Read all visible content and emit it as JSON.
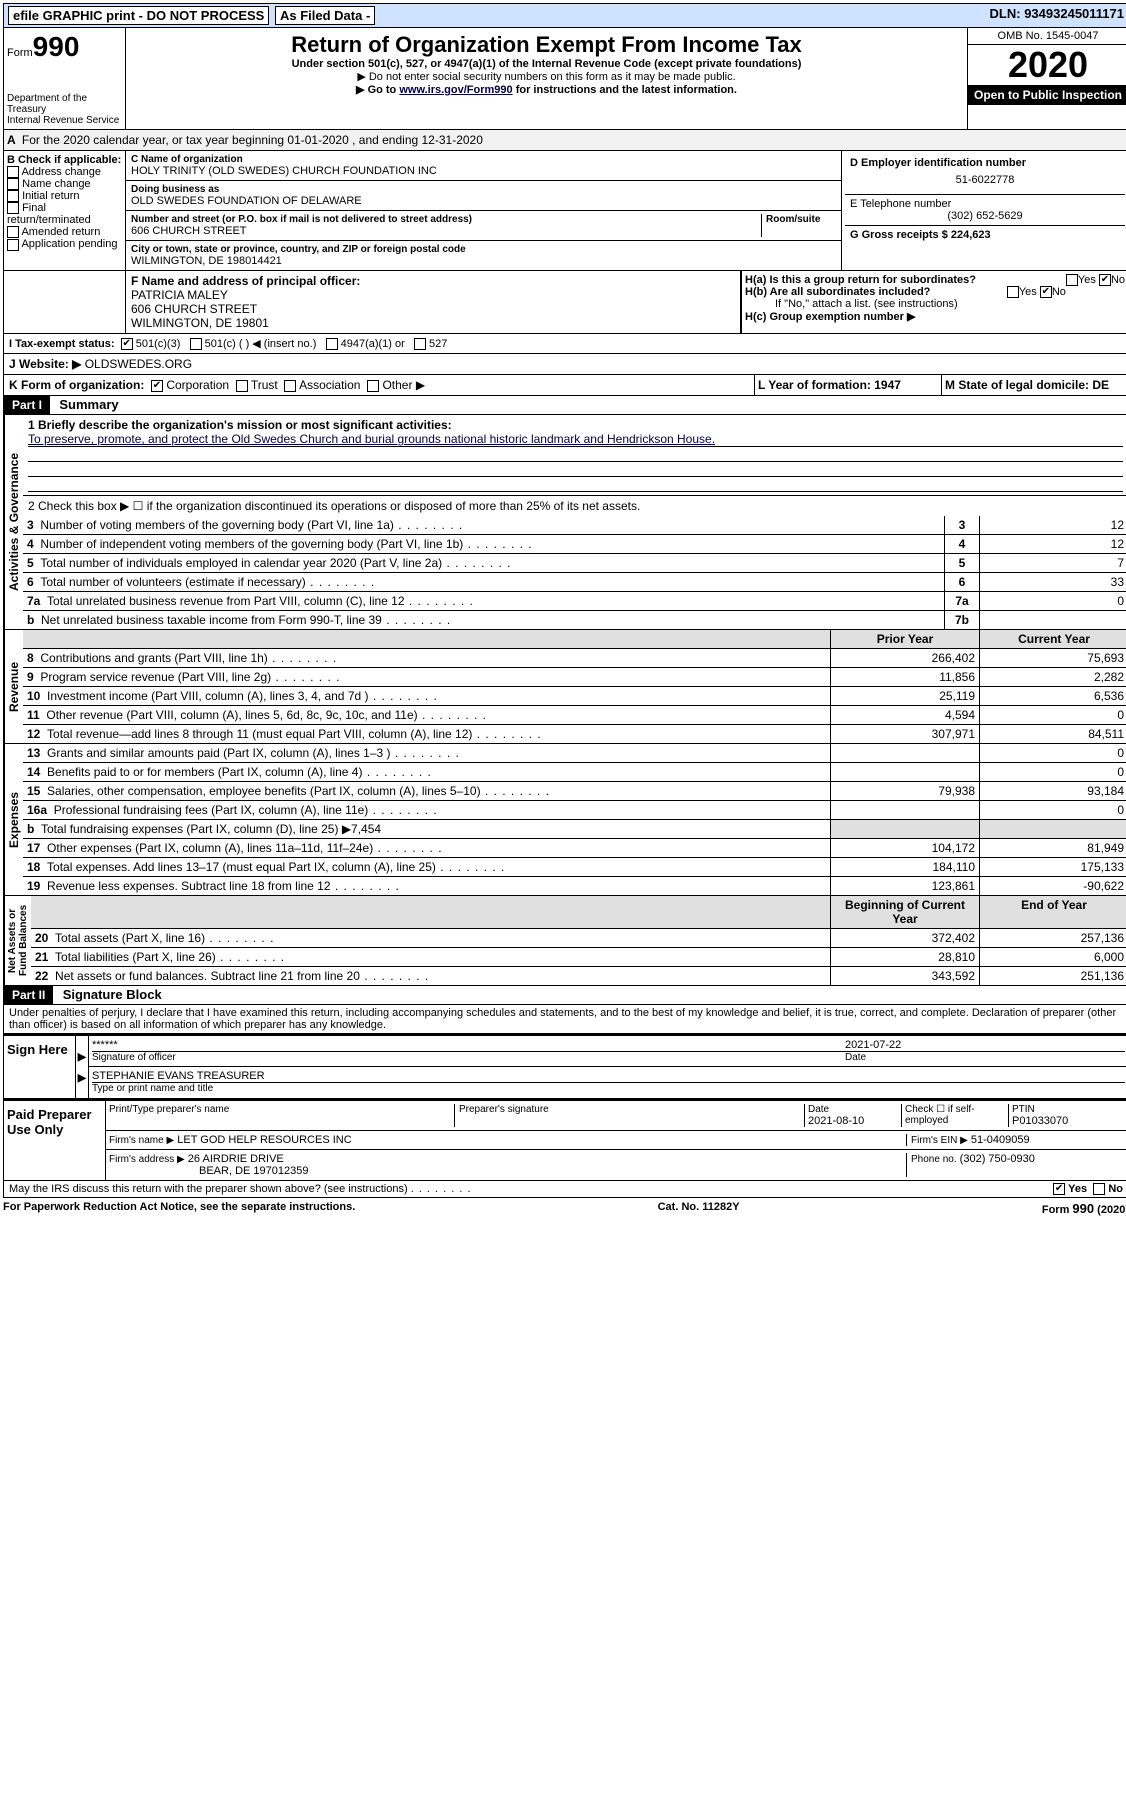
{
  "topbar": {
    "efile": "efile GRAPHIC print - DO NOT PROCESS",
    "asfiled": "As Filed Data -",
    "dln": "DLN: 93493245011171"
  },
  "header": {
    "form": "Form",
    "num": "990",
    "dept1": "Department of the Treasury",
    "dept2": "Internal Revenue Service",
    "title": "Return of Organization Exempt From Income Tax",
    "sub": "Under section 501(c), 527, or 4947(a)(1) of the Internal Revenue Code (except private foundations)",
    "note1": "▶ Do not enter social security numbers on this form as it may be made public.",
    "note2_pre": "▶ Go to ",
    "note2_link": "www.irs.gov/Form990",
    "note2_post": " for instructions and the latest information.",
    "omb": "OMB No. 1545-0047",
    "year": "2020",
    "open": "Open to Public Inspection"
  },
  "A": "For the 2020 calendar year, or tax year beginning 01-01-2020   , and ending 12-31-2020",
  "B": {
    "title": "B Check if applicable:",
    "opts": [
      "Address change",
      "Name change",
      "Initial return",
      "Final return/terminated",
      "Amended return",
      "Application pending"
    ]
  },
  "C": {
    "name_lbl": "C Name of organization",
    "name": "HOLY TRINITY (OLD SWEDES) CHURCH FOUNDATION INC",
    "dba_lbl": "Doing business as",
    "dba": "OLD SWEDES FOUNDATION OF DELAWARE",
    "addr_lbl": "Number and street (or P.O. box if mail is not delivered to street address)",
    "room_lbl": "Room/suite",
    "addr": "606 CHURCH STREET",
    "city_lbl": "City or town, state or province, country, and ZIP or foreign postal code",
    "city": "WILMINGTON, DE  198014421"
  },
  "D": {
    "lbl": "D Employer identification number",
    "val": "51-6022778"
  },
  "E": {
    "lbl": "E Telephone number",
    "val": "(302) 652-5629"
  },
  "G": "G Gross receipts $ 224,623",
  "F": {
    "lbl": "F  Name and address of principal officer:",
    "name": "PATRICIA MALEY",
    "addr1": "606 CHURCH STREET",
    "addr2": "WILMINGTON, DE  19801"
  },
  "H": {
    "a": "H(a)  Is this a group return for subordinates?",
    "b": "H(b)  Are all subordinates included?",
    "bnote": "If \"No,\" attach a list. (see instructions)",
    "c": "H(c)  Group exemption number ▶"
  },
  "I": {
    "lbl": "I   Tax-exempt status:",
    "o1": "501(c)(3)",
    "o2": "501(c) (  ) ◀ (insert no.)",
    "o3": "4947(a)(1) or",
    "o4": "527"
  },
  "J": {
    "lbl": "J   Website: ▶",
    "val": "OLDSWEDES.ORG"
  },
  "K": {
    "lbl": "K Form of organization:",
    "o1": "Corporation",
    "o2": "Trust",
    "o3": "Association",
    "o4": "Other ▶"
  },
  "L": "L Year of formation: 1947",
  "M": "M State of legal domicile: DE",
  "part1": {
    "hdr": "Part I",
    "title": "Summary",
    "l1": "1 Briefly describe the organization's mission or most significant activities:",
    "l1v": "To preserve, promote, and protect the Old Swedes Church and burial grounds national historic landmark and Hendrickson House.",
    "l2": "2  Check this box ▶ ☐ if the organization discontinued its operations or disposed of more than 25% of its net assets.",
    "rows": [
      {
        "n": "3",
        "d": "Number of voting members of the governing body (Part VI, line 1a)",
        "box": "3",
        "v": "12"
      },
      {
        "n": "4",
        "d": "Number of independent voting members of the governing body (Part VI, line 1b)",
        "box": "4",
        "v": "12"
      },
      {
        "n": "5",
        "d": "Total number of individuals employed in calendar year 2020 (Part V, line 2a)",
        "box": "5",
        "v": "7"
      },
      {
        "n": "6",
        "d": "Total number of volunteers (estimate if necessary)",
        "box": "6",
        "v": "33"
      },
      {
        "n": "7a",
        "d": "Total unrelated business revenue from Part VIII, column (C), line 12",
        "box": "7a",
        "v": "0"
      },
      {
        "n": "b",
        "d": "Net unrelated business taxable income from Form 990-T, line 39",
        "box": "7b",
        "v": ""
      }
    ],
    "hdr_prior": "Prior Year",
    "hdr_curr": "Current Year",
    "revenue": [
      {
        "n": "8",
        "d": "Contributions and grants (Part VIII, line 1h)",
        "p": "266,402",
        "c": "75,693"
      },
      {
        "n": "9",
        "d": "Program service revenue (Part VIII, line 2g)",
        "p": "11,856",
        "c": "2,282"
      },
      {
        "n": "10",
        "d": "Investment income (Part VIII, column (A), lines 3, 4, and 7d )",
        "p": "25,119",
        "c": "6,536"
      },
      {
        "n": "11",
        "d": "Other revenue (Part VIII, column (A), lines 5, 6d, 8c, 9c, 10c, and 11e)",
        "p": "4,594",
        "c": "0"
      },
      {
        "n": "12",
        "d": "Total revenue—add lines 8 through 11 (must equal Part VIII, column (A), line 12)",
        "p": "307,971",
        "c": "84,511"
      }
    ],
    "expenses": [
      {
        "n": "13",
        "d": "Grants and similar amounts paid (Part IX, column (A), lines 1–3 )",
        "p": "",
        "c": "0"
      },
      {
        "n": "14",
        "d": "Benefits paid to or for members (Part IX, column (A), line 4)",
        "p": "",
        "c": "0"
      },
      {
        "n": "15",
        "d": "Salaries, other compensation, employee benefits (Part IX, column (A), lines 5–10)",
        "p": "79,938",
        "c": "93,184"
      },
      {
        "n": "16a",
        "d": "Professional fundraising fees (Part IX, column (A), line 11e)",
        "p": "",
        "c": "0"
      },
      {
        "n": "b",
        "d": "Total fundraising expenses (Part IX, column (D), line 25) ▶7,454",
        "p": "",
        "c": "",
        "shade": true
      },
      {
        "n": "17",
        "d": "Other expenses (Part IX, column (A), lines 11a–11d, 11f–24e)",
        "p": "104,172",
        "c": "81,949"
      },
      {
        "n": "18",
        "d": "Total expenses. Add lines 13–17 (must equal Part IX, column (A), line 25)",
        "p": "184,110",
        "c": "175,133"
      },
      {
        "n": "19",
        "d": "Revenue less expenses. Subtract line 18 from line 12",
        "p": "123,861",
        "c": "-90,622"
      }
    ],
    "hdr_beg": "Beginning of Current Year",
    "hdr_end": "End of Year",
    "assets": [
      {
        "n": "20",
        "d": "Total assets (Part X, line 16)",
        "p": "372,402",
        "c": "257,136"
      },
      {
        "n": "21",
        "d": "Total liabilities (Part X, line 26)",
        "p": "28,810",
        "c": "6,000"
      },
      {
        "n": "22",
        "d": "Net assets or fund balances. Subtract line 21 from line 20",
        "p": "343,592",
        "c": "251,136"
      }
    ]
  },
  "part2": {
    "hdr": "Part II",
    "title": "Signature Block",
    "decl": "Under penalties of perjury, I declare that I have examined this return, including accompanying schedules and statements, and to the best of my knowledge and belief, it is true, correct, and complete. Declaration of preparer (other than officer) is based on all information of which preparer has any knowledge.",
    "sign_here": "Sign Here",
    "stars": "******",
    "sig_lbl": "Signature of officer",
    "date1": "2021-07-22",
    "date_lbl": "Date",
    "name": "STEPHANIE EVANS TREASURER",
    "name_lbl": "Type or print name and title",
    "paid": "Paid Preparer Use Only",
    "prep_name_lbl": "Print/Type preparer's name",
    "prep_sig_lbl": "Preparer's signature",
    "date2": "2021-08-10",
    "self_emp": "Check ☐ if self-employed",
    "ptin_lbl": "PTIN",
    "ptin": "P01033070",
    "firm_name_lbl": "Firm's name   ▶",
    "firm_name": "LET GOD HELP RESOURCES INC",
    "firm_ein_lbl": "Firm's EIN ▶",
    "firm_ein": "51-0409059",
    "firm_addr_lbl": "Firm's address ▶",
    "firm_addr1": "26 AIRDRIE DRIVE",
    "firm_addr2": "BEAR, DE  197012359",
    "phone_lbl": "Phone no.",
    "phone": "(302) 750-0930",
    "may_irs": "May the IRS discuss this return with the preparer shown above? (see instructions)",
    "yes": "Yes",
    "no": "No"
  },
  "footer": {
    "l": "For Paperwork Reduction Act Notice, see the separate instructions.",
    "c": "Cat. No. 11282Y",
    "r": "Form 990 (2020)"
  }
}
